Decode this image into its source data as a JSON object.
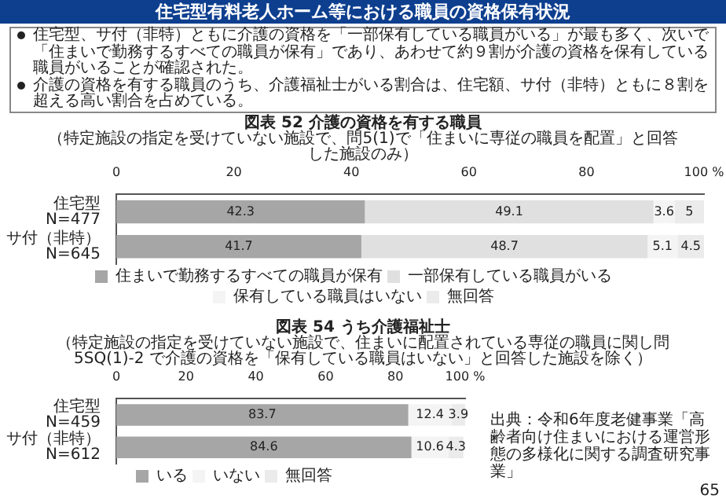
{
  "chart_data": [
    {
      "type": "bar",
      "orientation": "horizontal",
      "stacked": true,
      "title": "図表 52 介護の資格を有する職員",
      "subtitle": "（特定施設の指定を受けていない施設で、問5(1)で「住まいに専従の職員を配置」と回答した施設のみ）",
      "annotations": [
        "住宅型有料老人ホーム等における職員の資格保有状況",
        "住宅型、サ付（非特）ともに介護の資格を「一部保有している職員がいる」が最も多く、次いで「住まいで勤務するすべての職員が保有」であり、あわせて約９割が介護の資格を保有している職員がいることが確認された。",
        "介護の資格を有する職員のうち、介護福祉士がいる割合は、住宅額、サ付（非特）ともに８割を超える高い割合を占めている。"
      ],
      "categories": [
        "住宅型\nN=477",
        "サ付（非特）\nN=645"
      ],
      "series": [
        {
          "name": "住まいで勤務するすべての職員が保有",
          "color": "#a6a6a6",
          "values": [
            42.3,
            41.7
          ]
        },
        {
          "name": "一部保有している職員がいる",
          "color": "#e0e0e0",
          "values": [
            49.1,
            48.7
          ]
        },
        {
          "name": "保有している職員はいない",
          "color": "#f4f4f4",
          "values": [
            3.6,
            5.1
          ]
        },
        {
          "name": "無回答",
          "color": "#ebebeb",
          "values": [
            5.0,
            4.5
          ]
        }
      ],
      "xlim": [
        0,
        100
      ],
      "xticks": [
        0,
        20,
        40,
        60,
        80,
        {
          "value": 100,
          "label": "100 %"
        }
      ],
      "data_labels": true,
      "legend": "bottom"
    },
    {
      "type": "bar",
      "orientation": "horizontal",
      "stacked": true,
      "title": "図表 54 うち介護福祉士",
      "subtitle": "（特定施設の指定を受けていない施設で、住まいに配置されている専従の職員に関し問5SQ(1)-2 で介護の資格を「保有している職員はいない」と回答した施設を除く）",
      "annotations": [
        "出典：令和6年度老健事業「高齢者向け住まいにおける運営形態の多様化に関する調査研究事業」",
        "65"
      ],
      "categories": [
        "住宅型\nN=459",
        "サ付（非特）\nN=612"
      ],
      "series": [
        {
          "name": "いる",
          "color": "#a6a6a6",
          "values": [
            83.7,
            84.6
          ]
        },
        {
          "name": "いない",
          "color": "#f4f4f4",
          "values": [
            12.4,
            10.6
          ]
        },
        {
          "name": "無回答",
          "color": "#ebebeb",
          "values": [
            3.9,
            4.3
          ]
        }
      ],
      "xlim": [
        0,
        100
      ],
      "xticks": [
        0,
        20,
        40,
        60,
        80,
        {
          "value": 100,
          "label": "100 %"
        }
      ],
      "data_labels": true,
      "legend": "bottom"
    }
  ]
}
